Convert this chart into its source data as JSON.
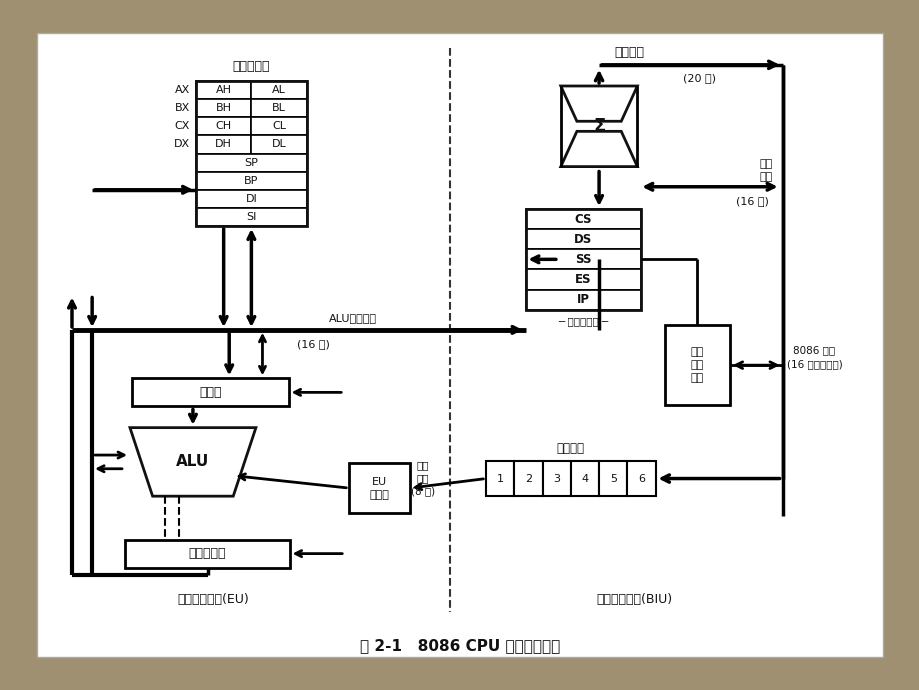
{
  "title": "图 2-1   8086 CPU 内部结构框图",
  "bg_outer": "#9e9070",
  "bg_inner": "#f5f2ea",
  "lc": "#111111",
  "general_reg_title": "通用寄存器",
  "regs_left": [
    "AX",
    "BX",
    "CX",
    "DX"
  ],
  "regs_h": [
    "AH",
    "BH",
    "CH",
    "DH"
  ],
  "regs_l": [
    "AL",
    "BL",
    "CL",
    "DL"
  ],
  "regs_single": [
    "SP",
    "BP",
    "DI",
    "SI"
  ],
  "internal_regs": [
    "CS",
    "DS",
    "SS",
    "ES",
    "IP"
  ],
  "internal_reg_label": "内部寄存器",
  "sigma": "Σ",
  "addr_bus": "地址总线",
  "addr_bits": "(20 位)",
  "data_bus": "数据\n总线",
  "data_bits": "(16 位)",
  "alu_bus_label": "ALU数据总线",
  "alu_bits": "(16 位)",
  "queue_bus_label": "队列\n总线\n(8 位)",
  "instr_queue_label": "指令队列",
  "queue_cells": [
    "1",
    "2",
    "3",
    "4",
    "5",
    "6"
  ],
  "bus_ctrl_label": "总线\n控制\n电路",
  "ext_bus_label": "8086 总线\n(16 位数据总线)",
  "eu_ctrl_label": "EU\n控制器",
  "temp_reg_label": "暂存器",
  "alu_label": "ALU",
  "flag_reg_label": "标志寄存器",
  "eu_unit_label": "指令执行单元(EU)",
  "biu_unit_label": "总线接口单元(BIU)"
}
